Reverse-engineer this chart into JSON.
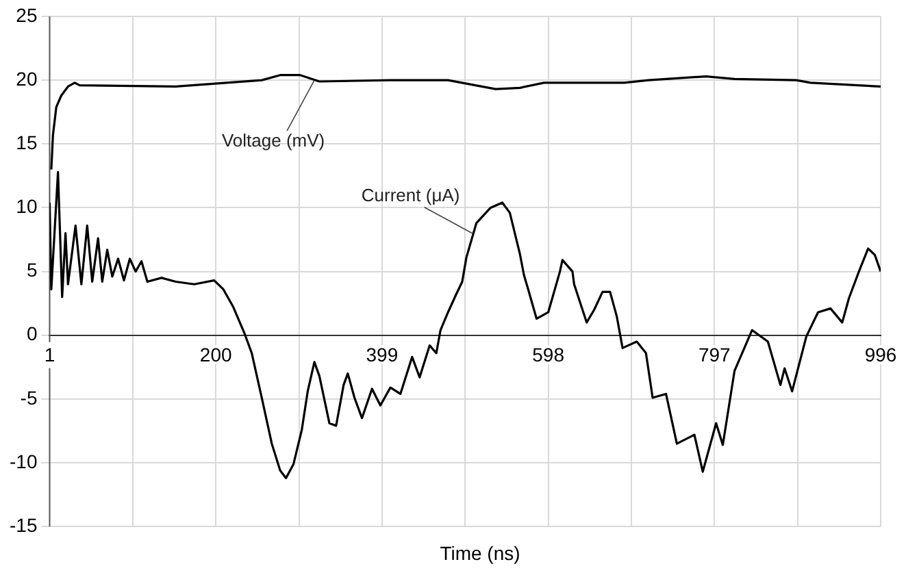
{
  "chart_data": {
    "type": "line",
    "xlabel": "Time (ns)",
    "xlim": [
      1,
      996
    ],
    "xticks": [
      1,
      {
        "value": 100.5,
        "label": null
      },
      200,
      {
        "value": 299.5,
        "label": null
      },
      399,
      {
        "value": 498.5,
        "label": null
      },
      598,
      {
        "value": 697.5,
        "label": null
      },
      797,
      {
        "value": 896.5,
        "label": null
      },
      996
    ],
    "ylim": [
      -15,
      25
    ],
    "yticks": [
      -15,
      -10,
      -5,
      0,
      5,
      10,
      15,
      20,
      25
    ],
    "grid": true,
    "line_style": "solid",
    "annotations": [
      {
        "text": "Voltage (mV)",
        "x": 318,
        "y": 20
      },
      {
        "text": "Current (μA)",
        "x": 507,
        "y": 8
      }
    ],
    "series": [
      {
        "color": "#000000",
        "x": [
          3,
          5,
          9,
          15,
          23,
          31,
          37,
          152,
          255,
          277,
          301,
          324,
          409,
          478,
          535,
          564,
          593,
          689,
          718,
          787,
          821,
          895,
          912,
          996
        ],
        "values": [
          13.0,
          15.7,
          17.9,
          18.8,
          19.5,
          19.8,
          19.6,
          19.5,
          20.0,
          20.4,
          20.4,
          19.9,
          20.0,
          20.0,
          19.3,
          19.4,
          19.8,
          19.8,
          20.0,
          20.3,
          20.1,
          20.0,
          19.8,
          19.5
        ]
      },
      {
        "color": "#000000",
        "x": [
          1,
          3,
          11,
          16,
          20,
          23,
          32,
          39,
          46,
          52,
          59,
          64,
          70,
          76,
          83,
          90,
          97,
          104,
          111,
          118,
          135,
          152,
          174,
          198,
          209,
          221,
          234,
          243,
          255,
          267,
          277,
          284,
          293,
          303,
          310,
          318,
          324,
          336,
          344,
          353,
          358,
          366,
          375,
          387,
          397,
          409,
          421,
          435,
          444,
          456,
          464,
          469,
          478,
          487,
          495,
          500,
          512,
          529,
          543,
          552,
          564,
          569,
          574,
          584,
          598,
          612,
          615,
          627,
          629,
          644,
          653,
          663,
          672,
          680,
          687,
          704,
          715,
          723,
          739,
          752,
          773,
          783,
          799,
          807,
          821,
          842,
          861,
          876,
          881,
          890,
          907,
          921,
          936,
          950,
          958,
          970,
          981,
          989,
          996
        ],
        "values": [
          10.4,
          3.6,
          12.8,
          3.0,
          8.0,
          4.0,
          8.6,
          4.0,
          8.6,
          4.2,
          7.6,
          4.2,
          6.7,
          4.6,
          6.0,
          4.3,
          6.0,
          5.0,
          5.8,
          4.2,
          4.5,
          4.2,
          4.0,
          4.3,
          3.6,
          2.2,
          0.2,
          -1.4,
          -4.9,
          -8.5,
          -10.6,
          -11.2,
          -10.1,
          -7.4,
          -4.4,
          -2.1,
          -3.2,
          -6.9,
          -7.1,
          -3.9,
          -3.0,
          -4.9,
          -6.5,
          -4.2,
          -5.5,
          -4.1,
          -4.6,
          -1.7,
          -3.3,
          -0.8,
          -1.4,
          0.4,
          1.8,
          3.1,
          4.2,
          6.1,
          8.8,
          10.0,
          10.4,
          9.6,
          6.4,
          4.7,
          3.6,
          1.3,
          1.8,
          5.0,
          5.9,
          5.0,
          4.0,
          1.0,
          2.0,
          3.4,
          3.4,
          1.5,
          -1.0,
          -0.5,
          -1.4,
          -4.9,
          -4.6,
          -8.5,
          -7.8,
          -10.7,
          -6.9,
          -8.6,
          -2.8,
          0.4,
          -0.5,
          -3.9,
          -2.6,
          -4.4,
          -0.1,
          1.8,
          2.1,
          1.0,
          2.9,
          5.0,
          6.8,
          6.3,
          5.0
        ]
      }
    ]
  }
}
